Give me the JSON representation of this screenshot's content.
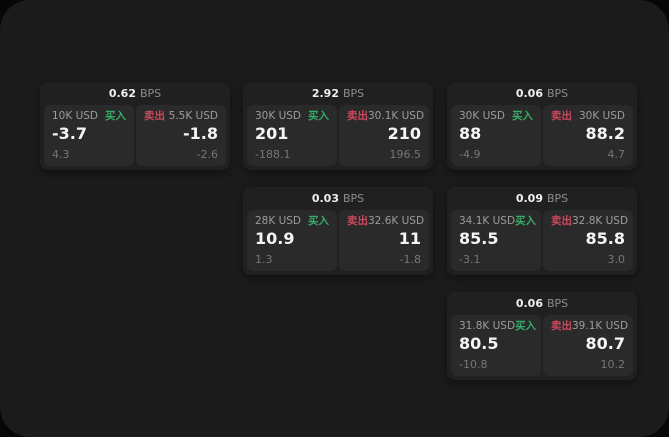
{
  "page": {
    "background": "#070707",
    "panel_background": "#1b1b1b"
  },
  "labels": {
    "buy": "买入",
    "sell": "卖出",
    "bps_unit": "BPS"
  },
  "colors": {
    "buy_green": "#35ad66",
    "sell_red": "#c9485c",
    "value_white": "#f5f5f5",
    "label_gray": "#9c9c9c",
    "sub_gray": "#767676"
  },
  "cards": [
    {
      "col": 1,
      "row": 1,
      "bps": "0.62",
      "buy": {
        "amount": "10K USD",
        "price": "-3.7",
        "sub": "4.3"
      },
      "sell": {
        "amount": "5.5K USD",
        "price": "-1.8",
        "sub": "-2.6"
      }
    },
    {
      "col": 2,
      "row": 1,
      "bps": "2.92",
      "buy": {
        "amount": "30K USD",
        "price": "201",
        "sub": "-188.1"
      },
      "sell": {
        "amount": "30.1K USD",
        "price": "210",
        "sub": "196.5"
      }
    },
    {
      "col": 3,
      "row": 1,
      "bps": "0.06",
      "buy": {
        "amount": "30K USD",
        "price": "88",
        "sub": "-4.9"
      },
      "sell": {
        "amount": "30K USD",
        "price": "88.2",
        "sub": "4.7"
      }
    },
    {
      "col": 2,
      "row": 2,
      "bps": "0.03",
      "buy": {
        "amount": "28K USD",
        "price": "10.9",
        "sub": "1.3"
      },
      "sell": {
        "amount": "32.6K USD",
        "price": "11",
        "sub": "-1.8"
      }
    },
    {
      "col": 3,
      "row": 2,
      "bps": "0.09",
      "buy": {
        "amount": "34.1K USD",
        "price": "85.5",
        "sub": "-3.1"
      },
      "sell": {
        "amount": "32.8K USD",
        "price": "85.8",
        "sub": "3.0"
      }
    },
    {
      "col": 3,
      "row": 3,
      "bps": "0.06",
      "buy": {
        "amount": "31.8K USD",
        "price": "80.5",
        "sub": "-10.8"
      },
      "sell": {
        "amount": "39.1K USD",
        "price": "80.7",
        "sub": "10.2"
      }
    }
  ]
}
